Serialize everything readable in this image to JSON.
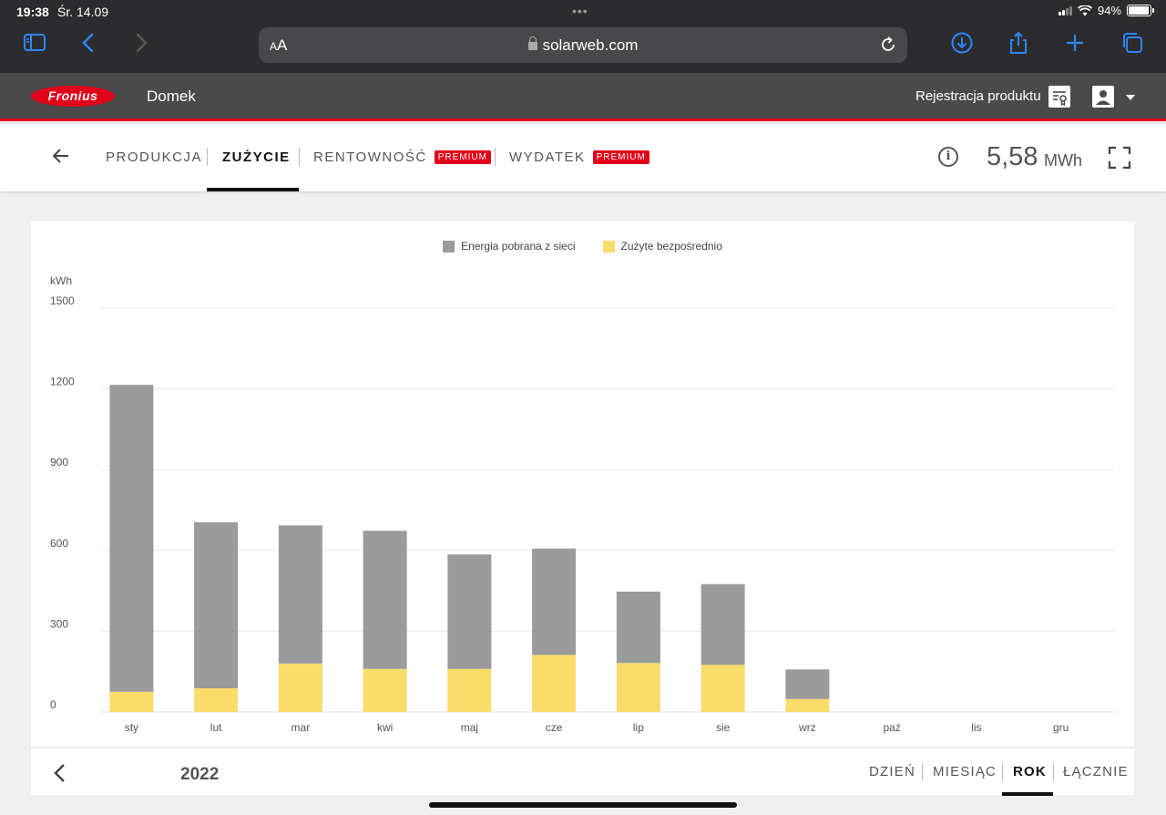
{
  "status_bar": {
    "time": "19:38",
    "date": "Śr. 14.09",
    "battery": "94%",
    "battery_level": 0.94
  },
  "browser": {
    "aa_label": "AA",
    "url": "solarweb.com"
  },
  "header": {
    "logo_text": "Fronius",
    "site_name": "Domek",
    "register_label": "Rejestracja produktu"
  },
  "tabs": [
    {
      "label": "PRODUKCJA",
      "premium": false
    },
    {
      "label": "ZUŻYCIE",
      "premium": false,
      "active": true
    },
    {
      "label": "RENTOWNOŚĆ",
      "premium": true
    },
    {
      "label": "WYDATEK",
      "premium": true
    }
  ],
  "premium_label": "PREMIUM",
  "total": {
    "value": "5,58",
    "unit": "MWh"
  },
  "chart_data": {
    "type": "bar",
    "stacked": true,
    "ylabel": "kWh",
    "ylim": [
      0,
      1500
    ],
    "yticks": [
      0,
      300,
      600,
      900,
      1200,
      1500
    ],
    "categories": [
      "sty",
      "lut",
      "mar",
      "kwi",
      "maj",
      "cze",
      "lip",
      "sie",
      "wrz",
      "paź",
      "lis",
      "gru"
    ],
    "series": [
      {
        "name": "Zużyte bezpośrednio",
        "color": "#f9dc6a",
        "values": [
          75,
          88,
          180,
          160,
          160,
          212,
          182,
          175,
          48,
          0,
          0,
          0
        ]
      },
      {
        "name": "Energia pobrana z sieci",
        "color": "#9b9b9b",
        "values": [
          1140,
          617,
          513,
          513,
          425,
          395,
          265,
          300,
          110,
          0,
          0,
          0
        ]
      }
    ],
    "legend_order": [
      "Energia pobrana z sieci",
      "Zużyte bezpośrednio"
    ],
    "legend_position": "top-center",
    "grid": true
  },
  "footer": {
    "year": "2022",
    "periods": [
      {
        "label": "DZIEŃ"
      },
      {
        "label": "MIESIĄC"
      },
      {
        "label": "ROK",
        "active": true
      },
      {
        "label": "ŁĄCZNIE"
      }
    ]
  }
}
